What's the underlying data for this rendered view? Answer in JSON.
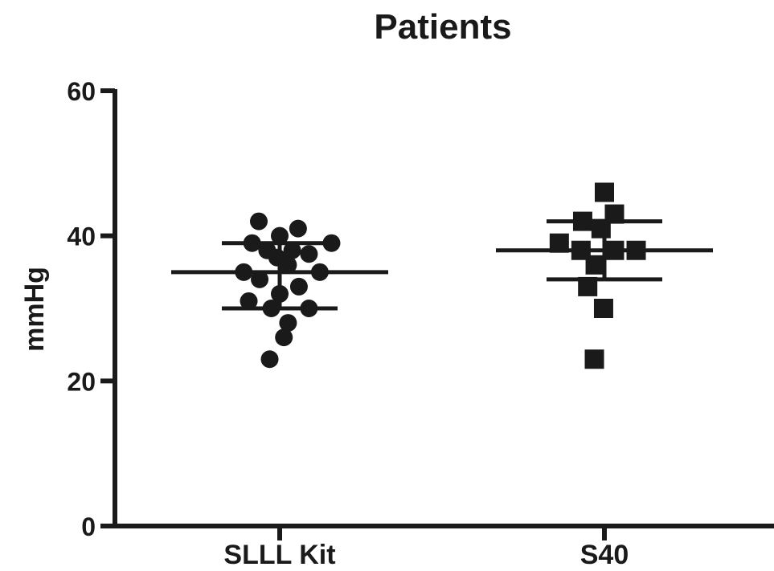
{
  "chart_data": {
    "type": "scatter",
    "title": "Patients",
    "xlabel": "",
    "ylabel": "mmHg",
    "ylim": [
      0,
      60
    ],
    "yticks": [
      "0",
      "20",
      "40",
      "60"
    ],
    "categories": [
      "SLLL Kit",
      "S40"
    ],
    "grid": false,
    "legend": "none",
    "colors": {
      "ink": "#1a1a1a"
    },
    "series": [
      {
        "category": "SLLL Kit",
        "marker": "circle",
        "values": [
          42,
          41,
          40,
          39,
          39,
          38,
          38,
          37.5,
          37,
          36,
          35,
          35,
          34,
          33,
          32,
          31,
          30,
          30,
          28,
          26,
          23
        ],
        "offsets": [
          -0.25,
          0.22,
          0,
          -0.33,
          0.62,
          -0.15,
          0.15,
          0.35,
          -0.03,
          0.1,
          -0.43,
          0.48,
          -0.24,
          0.23,
          0,
          -0.37,
          -0.1,
          0.35,
          0.1,
          0.05,
          -0.12
        ],
        "mean": 35,
        "sd_upper": 39,
        "sd_lower": 30
      },
      {
        "category": "S40",
        "marker": "square",
        "values": [
          46,
          43,
          42,
          41,
          39,
          38,
          38,
          38,
          36,
          33,
          30,
          23
        ],
        "offsets": [
          0,
          0.12,
          -0.26,
          -0.04,
          -0.54,
          -0.28,
          0.12,
          0.38,
          -0.11,
          -0.2,
          -0.01,
          -0.12
        ],
        "mean": 38,
        "sd_upper": 42,
        "sd_lower": 34
      }
    ]
  }
}
